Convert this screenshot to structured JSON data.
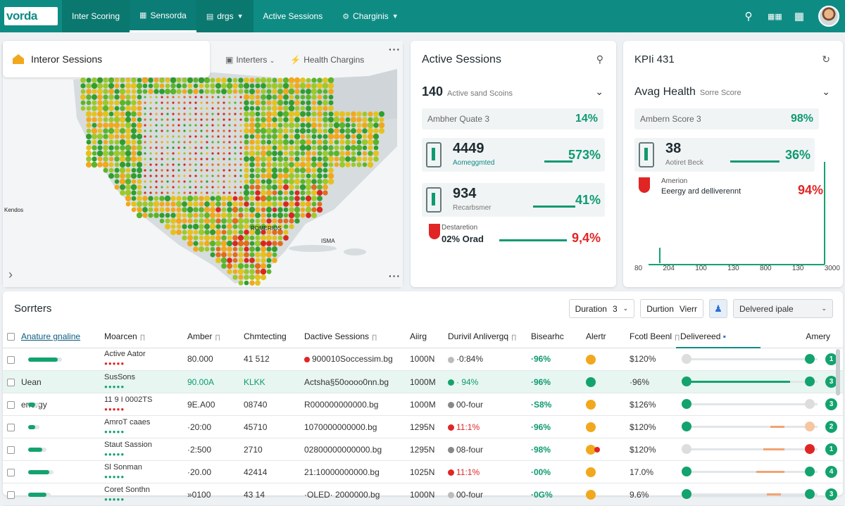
{
  "brand": {
    "logo": "vorda",
    "accent": "#0e8c84",
    "green": "#13a36e",
    "red": "#e12525",
    "amber": "#f2a81d"
  },
  "nav": [
    {
      "label": "Inter Scoring",
      "icon": ""
    },
    {
      "label": "Sensorda",
      "icon": "grid-icon"
    },
    {
      "label": "drgs",
      "icon": "chart-icon"
    },
    {
      "label": "Active Sessions",
      "icon": ""
    },
    {
      "label": "Charginis",
      "icon": "gear-icon"
    }
  ],
  "map": {
    "title": "Interor Sessions",
    "tools": [
      "Interters",
      "Health Chargins"
    ],
    "labels": [
      "Kendos",
      "ROMERIOS",
      "ISMA"
    ]
  },
  "sessions": {
    "title": "Active Sessions",
    "summary_value": "140",
    "summary_label": "Active sand Scoins",
    "box_label": "Ambher Quate 3",
    "box_value": "14%",
    "metrics": [
      {
        "value": "4449",
        "label": "Aomeggmted",
        "pct": "573%"
      },
      {
        "value": "934",
        "label": "Recarbsmer",
        "pct": "41%"
      },
      {
        "value": "02% Orad",
        "label": "Destaretion",
        "pct": "9,4%"
      }
    ]
  },
  "kpi": {
    "title": "KPIi 431",
    "subtitle_main": "Avag Health",
    "subtitle_small": "Sorre Score",
    "box_label": "Ambern Score 3",
    "box_value": "98%",
    "metric_value": "38",
    "metric_label": "Aotiret Beck",
    "metric_pct": "36%",
    "alert_label": "Amerion",
    "alert_text": "Eeergy ard delliverennt",
    "alert_pct": "94%",
    "ticks": [
      "80",
      "204",
      "100",
      "130",
      "800",
      "130",
      "3000"
    ]
  },
  "table": {
    "title": "Sorrters",
    "controls": {
      "duration": "Duration",
      "duration_num": "3",
      "durtion": "Durtion",
      "view": "Vierr",
      "select": "Delvered ipale"
    },
    "headers": [
      "Anature gnaline",
      "Moarcen",
      "Amber",
      "Chmtecting",
      "Dactive Sessions",
      "Aiirg",
      "Durivil Anlivergq",
      "Bisearhc",
      "Alertr",
      "Fcotl Beenl",
      "Delivereed",
      "Amery"
    ],
    "rows": [
      {
        "name": "",
        "user": "Active Aator",
        "amber": "80.000",
        "conn": "41 512",
        "sessions": "900010Soccessim.bg",
        "aiirg": "1000N",
        "durivil": "·0:84%",
        "bisearhc": "·96%",
        "fcotl": "$120%",
        "num": "1"
      },
      {
        "name": "Uean",
        "user": "SusSons",
        "amber": "90.00A",
        "conn": "KLKK",
        "sessions": "Actsha§50oooo0nn.bg",
        "aiirg": "1000M",
        "durivil": "· 94%",
        "bisearhc": "·96%",
        "fcotl": "·96%",
        "num": "3"
      },
      {
        "name": "energy",
        "user": "11 9 I 0002TS",
        "amber": "9E.A00",
        "conn": "08740",
        "sessions": "R000000000000.bg",
        "aiirg": "1000M",
        "durivil": "00-four",
        "bisearhc": "·S8%",
        "fcotl": "$126%",
        "num": "3"
      },
      {
        "name": "",
        "user": "AmroT caaes",
        "amber": "·20:00",
        "conn": "45710",
        "sessions": "1070000000000.bg",
        "aiirg": "1295N",
        "durivil": "11:1%",
        "bisearhc": "·96%",
        "fcotl": "$120%",
        "num": "2"
      },
      {
        "name": "",
        "user": "Staut Sassion",
        "amber": "·2:500",
        "conn": "2710",
        "sessions": "02800000000000.bg",
        "aiirg": "1295N",
        "durivil": "08-four",
        "bisearhc": "·98%",
        "fcotl": "$120%",
        "num": "1"
      },
      {
        "name": "",
        "user": "Sl Sonman",
        "amber": "·20.00",
        "conn": "42414",
        "sessions": "21:10000000000.bg",
        "aiirg": "1025N",
        "durivil": "11:1%",
        "bisearhc": "·00%",
        "fcotl": "17.0%",
        "num": "4"
      },
      {
        "name": "",
        "user": "Coret Sonthn",
        "amber": "»0100",
        "conn": "43 14",
        "sessions": "·OLED· 2000000.bg",
        "aiirg": "1000N",
        "durivil": "00-four",
        "bisearhc": "·0G%",
        "fcotl": "9.6%",
        "num": "3"
      }
    ]
  }
}
